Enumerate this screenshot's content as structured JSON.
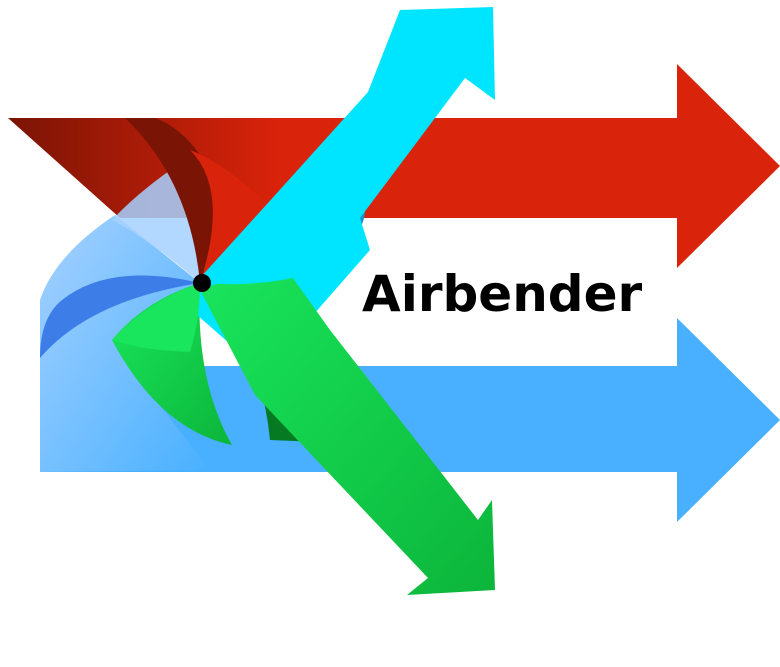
{
  "logo": {
    "wordmark": "Airbender",
    "colors": {
      "red_arrow": "#d9230a",
      "red_dark": "#7a1405",
      "blue_arrow": "#48b0ff",
      "cyan_arrow": "#00e5ff",
      "green_arrow": "#0cb53a",
      "green_light": "#19e65c",
      "green_dark": "#067a22",
      "blade_light_blue": "#a6d1ff",
      "blade_blue": "#3d7de8",
      "blade_teal": "#1b93c9",
      "pin": "#000000",
      "text": "#000000",
      "background": "#ffffff"
    },
    "icons": [
      "pinwheel-icon",
      "red-arrow-icon",
      "blue-arrow-icon",
      "cyan-arrow-icon",
      "green-arrow-icon"
    ]
  }
}
